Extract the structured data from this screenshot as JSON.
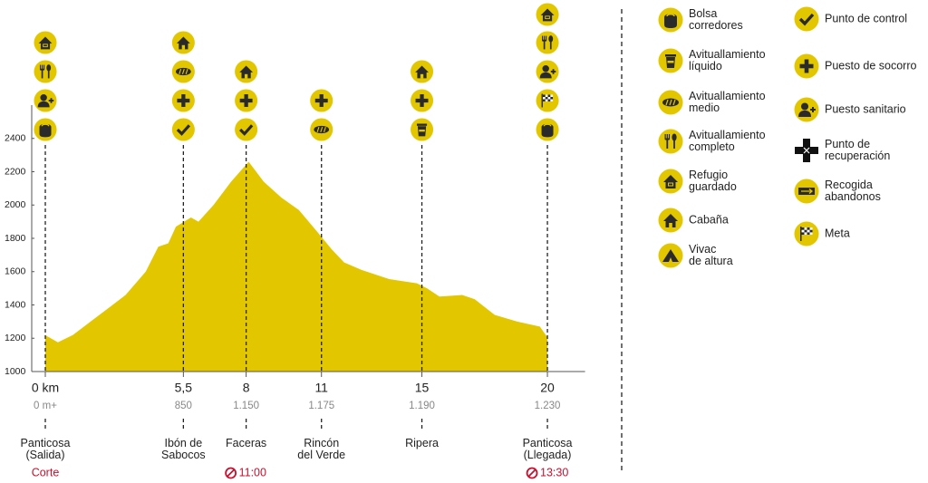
{
  "chart_data": {
    "type": "area",
    "color": "#e2c700",
    "x": [
      0,
      0.5,
      1.1,
      1.8,
      2.5,
      3.2,
      4.0,
      4.5,
      4.9,
      5.2,
      5.8,
      6.1,
      6.7,
      7.4,
      8.1,
      8.7,
      9.4,
      10.1,
      10.8,
      11.4,
      11.9,
      12.6,
      13.7,
      14.8,
      15.2,
      15.7,
      16.6,
      17.1,
      17.9,
      18.8,
      19.7,
      20
    ],
    "values": [
      1218,
      1175,
      1220,
      1300,
      1380,
      1460,
      1600,
      1750,
      1770,
      1870,
      1925,
      1900,
      2000,
      2140,
      2260,
      2140,
      2045,
      1970,
      1845,
      1735,
      1655,
      1610,
      1555,
      1530,
      1500,
      1450,
      1460,
      1435,
      1340,
      1300,
      1270,
      1205
    ],
    "xlim": [
      0,
      21.5
    ],
    "ylim": [
      1000,
      2600
    ],
    "yticks": [
      1000,
      1200,
      1400,
      1600,
      1800,
      2000,
      2200,
      2400
    ],
    "stations": [
      {
        "km": {
          "value": 0,
          "label": "0 km"
        },
        "gain": "0 m+",
        "name": "Panticosa\n(Salida)",
        "time": "Corte"
      },
      {
        "km": {
          "value": 5.5,
          "label": "5,5"
        },
        "gain": "850",
        "name": "Ibón de\nSabocos",
        "time": null
      },
      {
        "km": 8,
        "gain": "1.150",
        "name": "Faceras",
        "time": "11:00"
      },
      {
        "km": 11,
        "gain": "1.175",
        "name": "Rincón\ndel Verde",
        "time": null
      },
      {
        "km": 15,
        "gain": "1.190",
        "name": "Ripera",
        "time": null
      },
      {
        "km": 20,
        "gain": "1.230",
        "name": "Panticosa\n(Llegada)",
        "time": "13:30"
      }
    ],
    "legend": [
      "Bolsa\ncorredores",
      "Avituallamiento\nlíquido",
      "Avituallamiento\nmedio",
      "Avituallamiento\ncompleto",
      "Refugio\nguardado",
      "Cabaña",
      "Vivac\nde altura",
      "Punto de control",
      "Puesto de socorro",
      "Puesto sanitario",
      "Punto de\nrecuperación",
      "Recogida\nabandonos",
      "Meta"
    ]
  }
}
